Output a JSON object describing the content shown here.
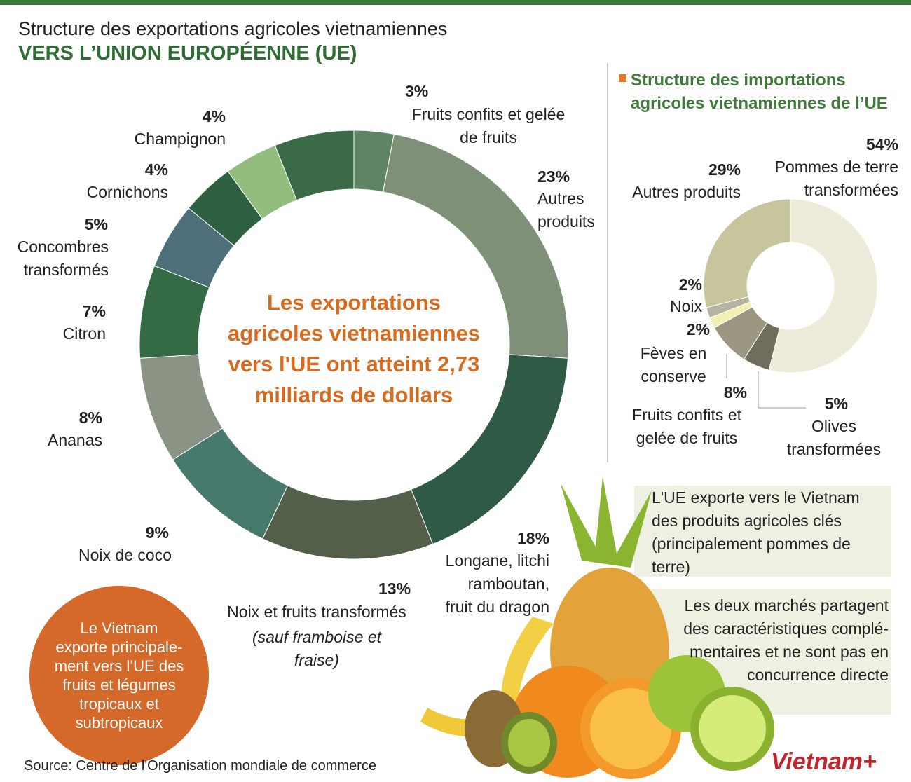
{
  "chart_data": [
    {
      "type": "donut",
      "title": "Structure des exportations agricoles vietnamiennes",
      "subtitle": "VERS L’UNION EUROPÉENNE (UE)",
      "center_text": "Les exportations\nagricoles vietnamiennes\nvers l'UE ont atteint 2,73\nmilliards de dollars",
      "categories": [
        "Fruits confits et gelée\nde fruits",
        "Autres\nproduits",
        "Longane, litchi\nramboutan,\nfruit du dragon",
        "Noix et fruits transformés",
        "Noix de coco",
        "Ananas",
        "Citron",
        "Concombres\ntransformés",
        "Cornichons",
        "Champignon",
        null
      ],
      "values": [
        3,
        23,
        18,
        13,
        9,
        8,
        7,
        5,
        4,
        4,
        6
      ],
      "value_labels": [
        "3%",
        "23%",
        "18%",
        "13%",
        "9%",
        "8%",
        "7%",
        "5%",
        "4%",
        "4%",
        null
      ],
      "colors": [
        "#5f8464",
        "#7e9178",
        "#2f5a45",
        "#545f4a",
        "#477a6c",
        "#8a9384",
        "#346b44",
        "#4e6e79",
        "#2e6042",
        "#93bd7e",
        "#3b6b46"
      ],
      "annotation": "(sauf framboise et fraise)"
    },
    {
      "type": "donut",
      "title": "Structure des importations agricoles vietnamiennes de l’UE",
      "categories": [
        "Pommes de terre\ntransformées",
        "Olives\ntransformées",
        "Fruits confits et\ngelée de fruits",
        "Fèves en\nconserve",
        "Noix",
        "Autres produits"
      ],
      "values": [
        54,
        5,
        8,
        2,
        2,
        29
      ],
      "value_labels": [
        "54%",
        "5%",
        "8%",
        "2%",
        "2%",
        "29%"
      ],
      "colors": [
        "#edecdb",
        "#6f6d5b",
        "#9a9680",
        "#f2f0b2",
        "#b6b3a1",
        "#c7c59b"
      ]
    }
  ],
  "notes": [
    "L'UE exporte vers le Vietnam\ndes produits agricoles clés\n(principalement pommes de\nterre)",
    "Les deux marchés partagent\ndes caractéristiques complé-\nmentaires et ne sont pas en\nconcurrence directe"
  ],
  "highlight": "Le Vietnam\nexporte principale-\nment vers l’UE des\nfruits et légumes\ntropicaux et\nsubtropicaux",
  "source": "Source: Centre de l'Organisation mondiale de commerce",
  "logo": "Vietnam+"
}
